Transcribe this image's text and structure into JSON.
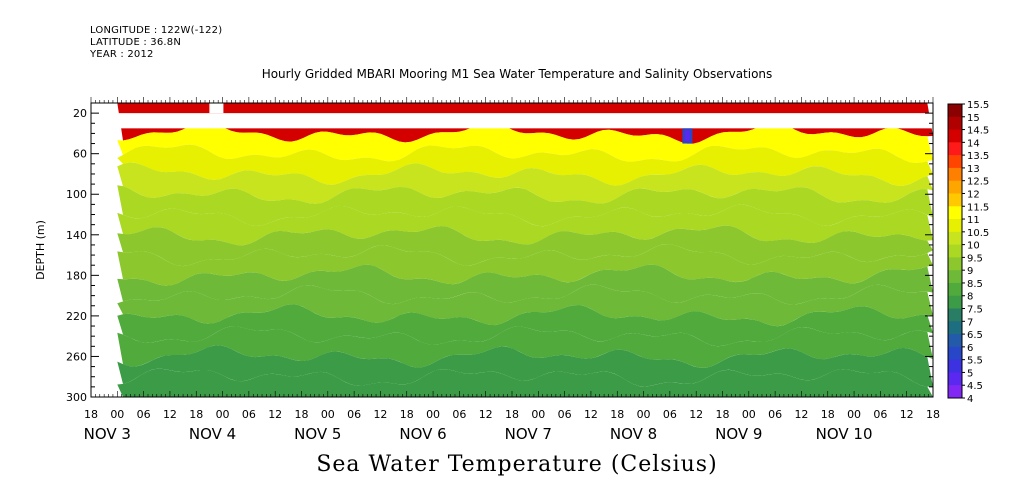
{
  "meta": {
    "longitude": "LONGITUDE : 122W(-122)",
    "latitude": "LATITUDE : 36.8N",
    "year": "YEAR : 2012"
  },
  "title": "Hourly Gridded MBARI Mooring M1 Sea Water Temperature and Salinity Observations",
  "footer_title": "Sea Water Temperature (Celsius)",
  "chart_data": {
    "type": "heatmap",
    "ylabel": "DEPTH (m)",
    "xlabel": "",
    "y_ticks": [
      20,
      60,
      100,
      140,
      180,
      220,
      260,
      300
    ],
    "ylim": [
      300,
      10
    ],
    "x_hour_ticks": [
      "18",
      "00",
      "06",
      "12",
      "18",
      "00",
      "06",
      "12",
      "18",
      "00",
      "06",
      "12",
      "18",
      "00",
      "06",
      "12",
      "18",
      "00",
      "06",
      "12",
      "18",
      "00",
      "06",
      "12",
      "18",
      "00",
      "06",
      "12",
      "18",
      "00",
      "06",
      "12",
      "18"
    ],
    "x_day_labels": [
      "NOV 3",
      "NOV 4",
      "NOV 5",
      "NOV 6",
      "NOV 7",
      "NOV 8",
      "NOV 9",
      "NOV 10"
    ],
    "xlim": [
      "2012-11-02T18:00",
      "2012-11-10T18:00"
    ],
    "data_start": "2012-11-03T00:00",
    "depth_layers": [
      {
        "depth": 10,
        "temp": 14.5
      },
      {
        "depth": 40,
        "temp": 11.5
      },
      {
        "depth": 60,
        "temp": 11.0
      },
      {
        "depth": 80,
        "temp": 10.7
      },
      {
        "depth": 100,
        "temp": 10.4
      },
      {
        "depth": 120,
        "temp": 10.1
      },
      {
        "depth": 140,
        "temp": 9.8
      },
      {
        "depth": 160,
        "temp": 9.5
      },
      {
        "depth": 180,
        "temp": 9.2
      },
      {
        "depth": 200,
        "temp": 9.0
      },
      {
        "depth": 220,
        "temp": 8.8
      },
      {
        "depth": 240,
        "temp": 8.6
      },
      {
        "depth": 260,
        "temp": 8.4
      },
      {
        "depth": 280,
        "temp": 8.2
      },
      {
        "depth": 300,
        "temp": 8.0
      }
    ],
    "missing_depth_range": [
      20,
      35
    ],
    "anomaly": {
      "time": "2012-11-08T10:00",
      "depth_range": [
        35,
        50
      ],
      "temp": 6.0
    },
    "legend": {
      "levels": [
        15.5,
        15,
        14.5,
        14,
        13.5,
        13,
        12.5,
        12,
        11.5,
        11,
        10.5,
        10,
        9.5,
        9,
        8.5,
        8,
        7.5,
        7,
        6.5,
        6,
        5.5,
        5,
        4.5,
        4
      ],
      "colors": [
        "#8b0000",
        "#b00000",
        "#d40000",
        "#ff1a1a",
        "#ff4500",
        "#ff7f00",
        "#ffa500",
        "#ffc800",
        "#ffff00",
        "#e6f000",
        "#c8e41e",
        "#aad823",
        "#8cc82d",
        "#6eb937",
        "#50aa3c",
        "#3c9b46",
        "#287d64",
        "#1e6e82",
        "#235aaa",
        "#2846c8",
        "#3c32e1",
        "#5a28f0",
        "#8228f5",
        "#c800ff"
      ],
      "position": "right"
    }
  }
}
